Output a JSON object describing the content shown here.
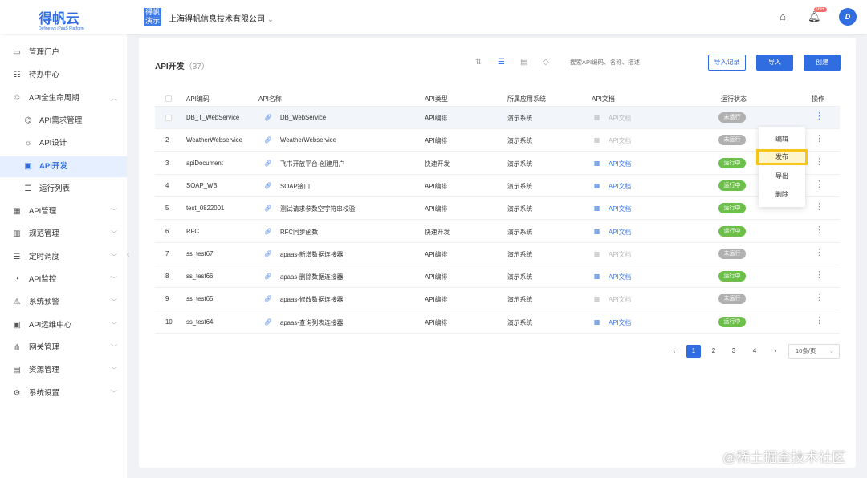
{
  "header": {
    "logo": "得帆云",
    "logo_sub": "Definesys iPaaS Platform",
    "org_badge": "得帆演示",
    "org_name": "上海得帆信息技术有限公司",
    "notif_count": "99+",
    "avatar": "D"
  },
  "sidebar": {
    "items": [
      {
        "label": "管理门户",
        "icon": "monitor-icon"
      },
      {
        "label": "待办中心",
        "icon": "todo-icon"
      },
      {
        "label": "API全生命周期",
        "icon": "lifecycle-icon",
        "chevron": "up"
      },
      {
        "label": "API需求管理",
        "sub": true
      },
      {
        "label": "API设计",
        "sub": true
      },
      {
        "label": "API开发",
        "sub": true,
        "active": true
      },
      {
        "label": "运行列表",
        "sub": true
      },
      {
        "label": "API管理",
        "chevron": "down"
      },
      {
        "label": "规范管理",
        "chevron": "down"
      },
      {
        "label": "定时调度",
        "chevron": "down"
      },
      {
        "label": "API监控",
        "chevron": "down"
      },
      {
        "label": "系统预警",
        "chevron": "down"
      },
      {
        "label": "API运维中心",
        "chevron": "down"
      },
      {
        "label": "网关管理",
        "chevron": "down"
      },
      {
        "label": "资源管理",
        "chevron": "down"
      },
      {
        "label": "系统设置",
        "chevron": "down"
      }
    ]
  },
  "main": {
    "title": "API开发",
    "count": "（37）",
    "search_placeholder": "搜索API编码、名称、描述",
    "btn_import_log": "导入记录",
    "btn_import": "导入",
    "btn_create": "创建",
    "columns": [
      "API编码",
      "API名称",
      "API类型",
      "所属应用系统",
      "API文档",
      "运行状态",
      "操作"
    ],
    "rows": [
      {
        "idx": "",
        "code": "DB_T_WebService",
        "name": "DB_WebService",
        "type": "API编排",
        "system": "演示系统",
        "doc": "API文档",
        "doc_enabled": false,
        "status": "未运行"
      },
      {
        "idx": "2",
        "code": "WeatherWebservice",
        "name": "WeatherWebservice",
        "type": "API编排",
        "system": "演示系统",
        "doc": "API文档",
        "doc_enabled": false,
        "status": "未运行"
      },
      {
        "idx": "3",
        "code": "apiDocument",
        "name": "飞书开放平台-创建用户",
        "type": "快速开发",
        "system": "演示系统",
        "doc": "API文档",
        "doc_enabled": true,
        "status": "运行中"
      },
      {
        "idx": "4",
        "code": "SOAP_WB",
        "name": "SOAP接口",
        "type": "API编排",
        "system": "演示系统",
        "doc": "API文档",
        "doc_enabled": true,
        "status": "运行中"
      },
      {
        "idx": "5",
        "code": "test_0822001",
        "name": "测试请求参数空字符串校验",
        "type": "API编排",
        "system": "演示系统",
        "doc": "API文档",
        "doc_enabled": true,
        "status": "运行中"
      },
      {
        "idx": "6",
        "code": "RFC",
        "name": "RFC同步函数",
        "type": "快速开发",
        "system": "演示系统",
        "doc": "API文档",
        "doc_enabled": true,
        "status": "运行中"
      },
      {
        "idx": "7",
        "code": "ss_test67",
        "name": "apaas-新增数据连接器",
        "type": "API编排",
        "system": "演示系统",
        "doc": "API文档",
        "doc_enabled": false,
        "status": "未运行"
      },
      {
        "idx": "8",
        "code": "ss_test66",
        "name": "apaas-删除数据连接器",
        "type": "API编排",
        "system": "演示系统",
        "doc": "API文档",
        "doc_enabled": true,
        "status": "运行中"
      },
      {
        "idx": "9",
        "code": "ss_test65",
        "name": "apaas-修改数据连接器",
        "type": "API编排",
        "system": "演示系统",
        "doc": "API文档",
        "doc_enabled": false,
        "status": "未运行"
      },
      {
        "idx": "10",
        "code": "ss_test64",
        "name": "apaas-查询列表连接器",
        "type": "API编排",
        "system": "演示系统",
        "doc": "API文档",
        "doc_enabled": true,
        "status": "运行中"
      }
    ],
    "menu": [
      "编辑",
      "发布",
      "导出",
      "删除"
    ],
    "pagination": {
      "pages": [
        "1",
        "2",
        "3",
        "4"
      ],
      "current": "1",
      "page_size": "10条/页"
    }
  },
  "watermark": "@稀土掘金技术社区",
  "colors": {
    "primary": "#2f6de1",
    "running": "#6cc04a",
    "stopped": "#b0b0b0",
    "highlight": "#f5c518"
  }
}
